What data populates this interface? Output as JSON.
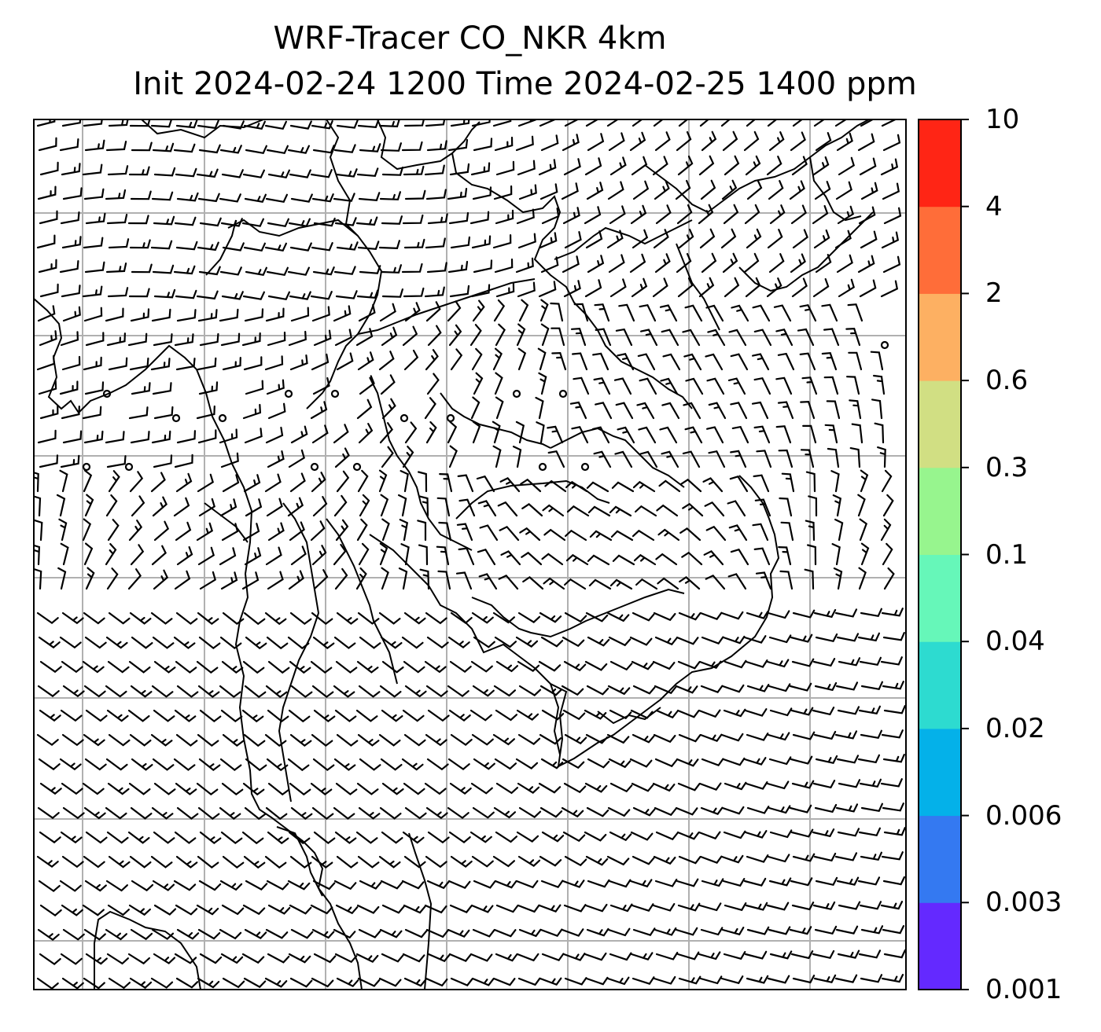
{
  "title": {
    "line1": "WRF-Tracer CO_NKR 4km",
    "line2": "Init 2024-02-24 1200 Time 2024-02-25 1400 ppm"
  },
  "colorbar": {
    "levels": [
      "0.001",
      "0.003",
      "0.006",
      "0.02",
      "0.04",
      "0.1",
      "0.3",
      "0.6",
      "2",
      "4",
      "10"
    ],
    "colors": [
      "#6429ff",
      "#3479f1",
      "#04b1e9",
      "#2ddbd0",
      "#66f7b9",
      "#97f58e",
      "#d1df83",
      "#fdb062",
      "#ff6d39",
      "#ff2515"
    ]
  },
  "map": {
    "field": "wind barbs over coastline/border outlines",
    "gridline_color": "#b0b0b0"
  }
}
